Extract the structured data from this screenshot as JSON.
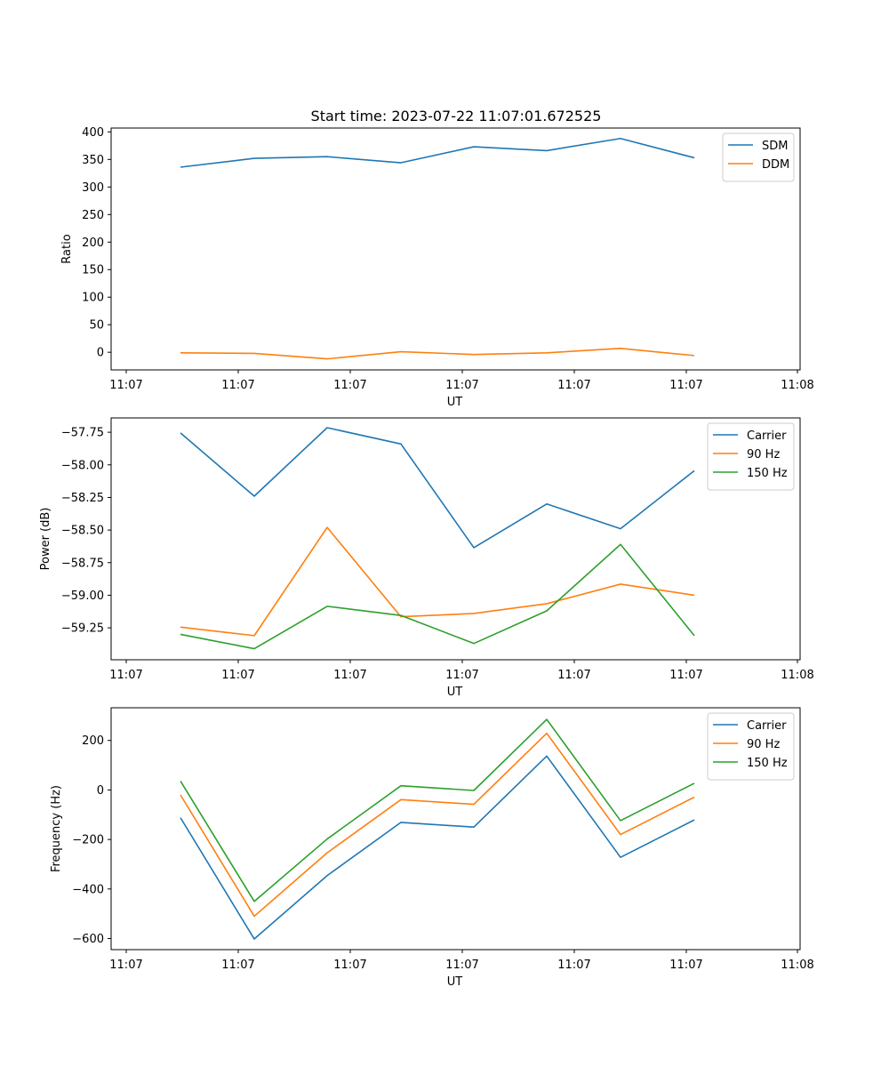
{
  "title": "Start time: 2023-07-22 11:07:01.672525",
  "chart_data": [
    {
      "type": "line",
      "id": "ratio",
      "xlabel": "UT",
      "ylabel": "Ratio",
      "x_ticks": [
        "11:07",
        "11:07",
        "11:07",
        "11:07",
        "11:07",
        "11:07",
        "11:08"
      ],
      "y_ticks": [
        "0",
        "50",
        "100",
        "150",
        "200",
        "250",
        "300",
        "350",
        "400"
      ],
      "ylim": [
        -32,
        407
      ],
      "legend_position": "top-right",
      "series": [
        {
          "name": "SDM",
          "color": "#1f77b4",
          "values": [
            336,
            352,
            355,
            344,
            373,
            366,
            388,
            353
          ]
        },
        {
          "name": "DDM",
          "color": "#ff7f0e",
          "values": [
            -1,
            -2,
            -12,
            1,
            -4,
            -1,
            7,
            -6
          ]
        }
      ]
    },
    {
      "type": "line",
      "id": "power",
      "xlabel": "UT",
      "ylabel": "Power (dB)",
      "x_ticks": [
        "11:07",
        "11:07",
        "11:07",
        "11:07",
        "11:07",
        "11:07",
        "11:08"
      ],
      "y_ticks": [
        "−59.25",
        "−59.00",
        "−58.75",
        "−58.50",
        "−58.25",
        "−58.00",
        "−57.75"
      ],
      "ylim": [
        -59.495,
        -57.64
      ],
      "legend_position": "top-right",
      "series": [
        {
          "name": "Carrier",
          "color": "#1f77b4",
          "values": [
            -57.755,
            -58.24,
            -57.715,
            -57.84,
            -58.635,
            -58.3,
            -58.49,
            -58.045
          ]
        },
        {
          "name": "90 Hz",
          "color": "#ff7f0e",
          "values": [
            -59.245,
            -59.31,
            -58.48,
            -59.165,
            -59.14,
            -59.065,
            -58.915,
            -59.0
          ]
        },
        {
          "name": "150 Hz",
          "color": "#2ca02c",
          "values": [
            -59.3,
            -59.41,
            -59.085,
            -59.155,
            -59.37,
            -59.12,
            -58.61,
            -59.31
          ]
        }
      ]
    },
    {
      "type": "line",
      "id": "frequency",
      "xlabel": "UT",
      "ylabel": "Frequency (Hz)",
      "x_ticks": [
        "11:07",
        "11:07",
        "11:07",
        "11:07",
        "11:07",
        "11:07",
        "11:08"
      ],
      "y_ticks": [
        "−600",
        "−400",
        "−200",
        "0",
        "200"
      ],
      "ylim": [
        -645,
        332
      ],
      "legend_position": "top-right",
      "series": [
        {
          "name": "Carrier",
          "color": "#1f77b4",
          "values": [
            -112,
            -602,
            -346,
            -131,
            -150,
            137,
            -272,
            -121
          ]
        },
        {
          "name": "90 Hz",
          "color": "#ff7f0e",
          "values": [
            -20,
            -510,
            -254,
            -39,
            -58,
            229,
            -180,
            -29
          ]
        },
        {
          "name": "150 Hz",
          "color": "#2ca02c",
          "values": [
            36,
            -450,
            -198,
            17,
            -2,
            285,
            -124,
            27
          ]
        }
      ]
    }
  ]
}
